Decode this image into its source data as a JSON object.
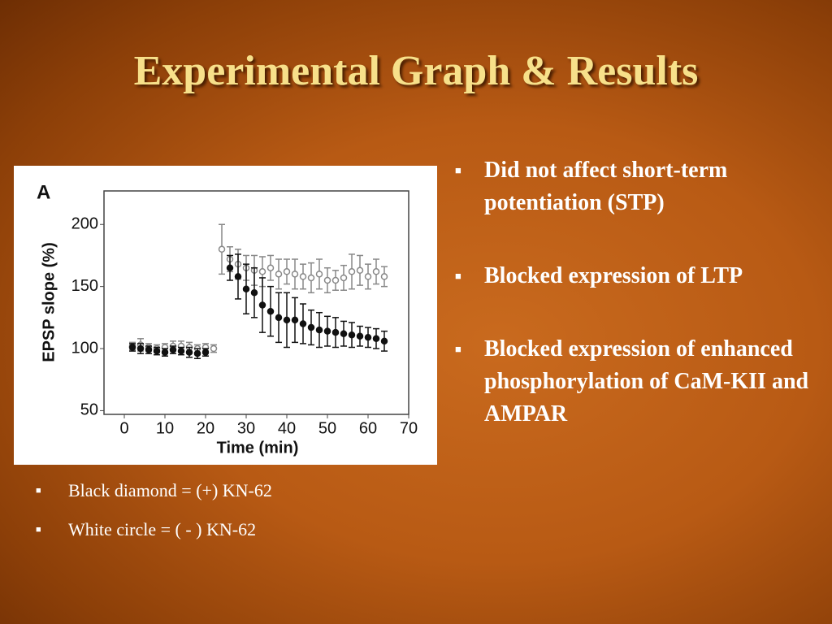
{
  "title": "Experimental Graph & Results",
  "bullets": [
    "Did not affect short-term potentiation (STP)",
    "Blocked expression of LTP",
    "Blocked expression of enhanced phosphorylation of CaM-KII and AMPAR"
  ],
  "notes": [
    "Black diamond = (+) KN-62",
    "White circle = ( - ) KN-62"
  ],
  "chart_data": {
    "type": "scatter",
    "panel_label": "A",
    "x_label": "Time (min)",
    "y_label": "EPSP slope (%)",
    "xlim": [
      -5,
      70
    ],
    "ylim": [
      47,
      227
    ],
    "xticks": [
      0,
      10,
      20,
      30,
      40,
      50,
      60,
      70
    ],
    "yticks": [
      50,
      100,
      150,
      200
    ],
    "series": [
      {
        "color": "#888888",
        "marker_fill": "#ffffff",
        "x": [
          2,
          4,
          6,
          8,
          10,
          12,
          14,
          16,
          18,
          20,
          22,
          24,
          26,
          28,
          30,
          32,
          34,
          36,
          38,
          40,
          42,
          44,
          46,
          48,
          50,
          52,
          54,
          56,
          58,
          60,
          62,
          64
        ],
        "values": [
          102,
          103,
          101,
          100,
          101,
          102,
          102,
          101,
          100,
          101,
          100,
          180,
          172,
          168,
          165,
          163,
          162,
          165,
          160,
          162,
          160,
          158,
          157,
          160,
          155,
          155,
          157,
          162,
          163,
          158,
          162,
          158
        ],
        "errors": [
          3,
          5,
          3,
          3,
          3,
          4,
          4,
          4,
          3,
          3,
          3,
          20,
          10,
          12,
          10,
          12,
          12,
          10,
          12,
          10,
          12,
          10,
          12,
          12,
          10,
          8,
          10,
          14,
          12,
          10,
          10,
          8
        ]
      },
      {
        "color": "#111111",
        "marker_fill": "#111111",
        "x": [
          2,
          4,
          6,
          8,
          10,
          12,
          14,
          16,
          18,
          20,
          26,
          28,
          30,
          32,
          34,
          36,
          38,
          40,
          42,
          44,
          46,
          48,
          50,
          52,
          54,
          56,
          58,
          60,
          62,
          64
        ],
        "values": [
          101,
          100,
          99,
          98,
          97,
          99,
          98,
          97,
          96,
          97,
          165,
          158,
          148,
          145,
          135,
          130,
          125,
          123,
          123,
          120,
          117,
          115,
          114,
          113,
          112,
          111,
          110,
          109,
          108,
          106
        ],
        "errors": [
          3,
          4,
          3,
          3,
          3,
          3,
          3,
          4,
          4,
          3,
          10,
          18,
          20,
          20,
          22,
          20,
          20,
          22,
          18,
          16,
          14,
          14,
          12,
          12,
          10,
          10,
          8,
          8,
          8,
          8
        ]
      }
    ]
  }
}
